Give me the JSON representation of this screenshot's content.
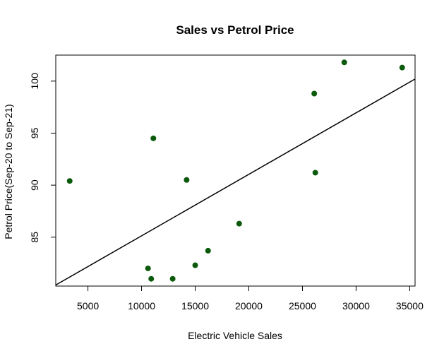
{
  "chart_data": {
    "type": "scatter",
    "title": "Sales vs Petrol Price",
    "xlabel": "Electric Vehicle Sales",
    "ylabel": "Petrol Price(Sep-20 to Sep-21)",
    "xlim": [
      2000,
      35500
    ],
    "ylim": [
      80.3,
      102.5
    ],
    "x_ticks": [
      5000,
      10000,
      15000,
      20000,
      25000,
      30000,
      35000
    ],
    "y_ticks": [
      85,
      90,
      95,
      100
    ],
    "grid": false,
    "legend": "none",
    "point_color": "#0b5a0b",
    "line_color": "#000000",
    "points": [
      {
        "x": 3300,
        "y": 90.4
      },
      {
        "x": 10600,
        "y": 82.0
      },
      {
        "x": 10900,
        "y": 81.0
      },
      {
        "x": 11100,
        "y": 94.5
      },
      {
        "x": 12900,
        "y": 81.0
      },
      {
        "x": 14200,
        "y": 90.5
      },
      {
        "x": 15000,
        "y": 82.3
      },
      {
        "x": 16200,
        "y": 83.7
      },
      {
        "x": 19100,
        "y": 86.3
      },
      {
        "x": 26100,
        "y": 98.8
      },
      {
        "x": 26200,
        "y": 91.2
      },
      {
        "x": 28900,
        "y": 101.8
      },
      {
        "x": 34300,
        "y": 101.3
      }
    ],
    "trend_line": {
      "x": [
        2000,
        35500
      ],
      "y": [
        80.4,
        100.2
      ]
    }
  }
}
